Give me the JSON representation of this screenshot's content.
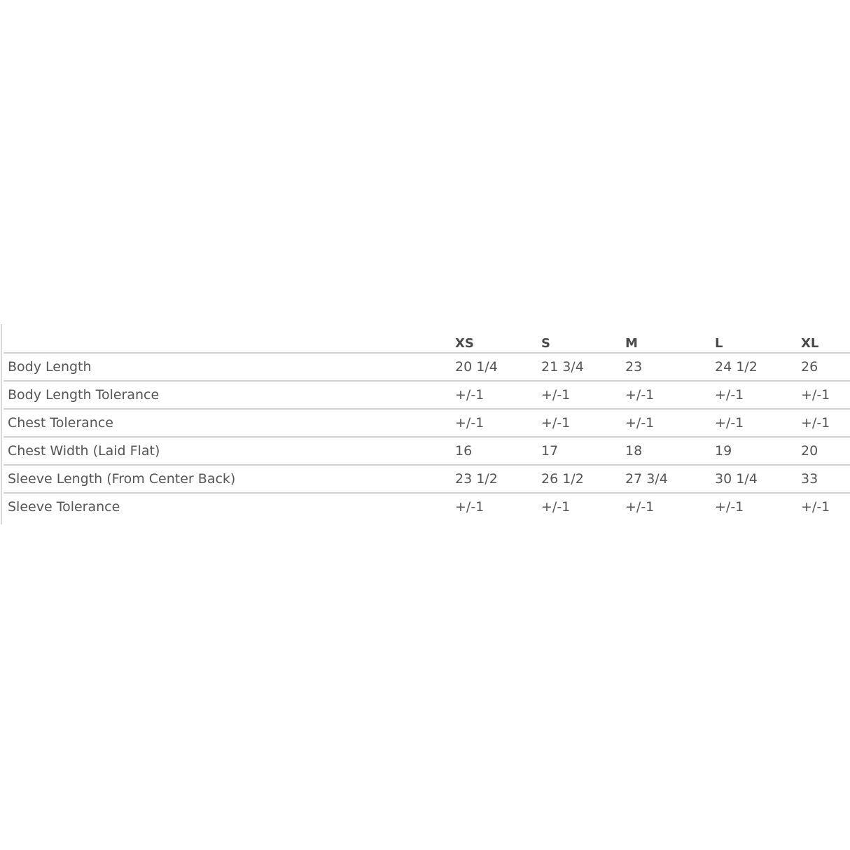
{
  "size_chart": {
    "columns": [
      "",
      "XS",
      "S",
      "M",
      "L",
      "XL"
    ],
    "rows": [
      {
        "label": "Body Length",
        "values": [
          "20 1/4",
          "21 3/4",
          "23",
          "24 1/2",
          "26"
        ]
      },
      {
        "label": "Body Length Tolerance",
        "values": [
          "+/-1",
          "+/-1",
          "+/-1",
          "+/-1",
          "+/-1"
        ]
      },
      {
        "label": "Chest Tolerance",
        "values": [
          "+/-1",
          "+/-1",
          "+/-1",
          "+/-1",
          "+/-1"
        ]
      },
      {
        "label": "Chest Width (Laid Flat)",
        "values": [
          "16",
          "17",
          "18",
          "19",
          "20"
        ]
      },
      {
        "label": "Sleeve Length (From Center Back)",
        "values": [
          "23 1/2",
          "26 1/2",
          "27 3/4",
          "30 1/4",
          "33"
        ]
      },
      {
        "label": "Sleeve Tolerance",
        "values": [
          "+/-1",
          "+/-1",
          "+/-1",
          "+/-1",
          "+/-1"
        ]
      }
    ]
  }
}
